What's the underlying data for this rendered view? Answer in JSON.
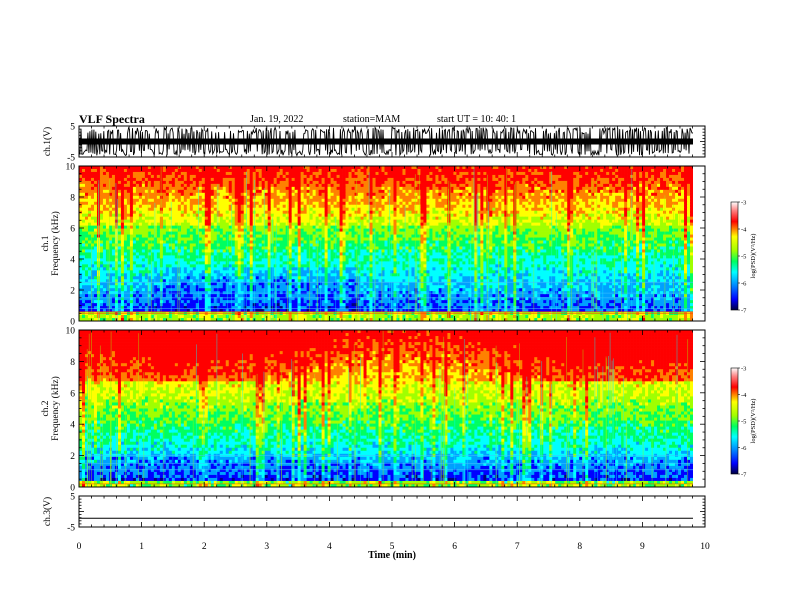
{
  "header": {
    "title": "VLF Spectra",
    "date": "Jan. 19, 2022",
    "station": "station=MAM",
    "start": "start UT =  10: 40: 1"
  },
  "colors": {
    "scale": [
      "#000080",
      "#0000ff",
      "#00a0ff",
      "#00ffff",
      "#00ff60",
      "#a0ff00",
      "#ffff00",
      "#ff8000",
      "#ff0000"
    ],
    "axis": "#000000",
    "waveform": "#000000"
  },
  "chart_data": [
    {
      "type": "line",
      "name": "ch1-waveform",
      "ylabel": "ch.1(V)",
      "ylim": [
        -5,
        5
      ],
      "yticks": [
        "5",
        "-5"
      ],
      "xlim": [
        0,
        10
      ],
      "description_units": "V",
      "amplitude": 4.5
    },
    {
      "type": "heatmap",
      "name": "ch1-spectrogram",
      "ylabel_top": "ch.1",
      "ylabel": "Frequency (kHz)",
      "ylim": [
        0,
        10
      ],
      "yticks": [
        "0",
        "2",
        "4",
        "6",
        "8",
        "10"
      ],
      "xlim": [
        0,
        10
      ],
      "colorbar": {
        "label": "log(PSD)(V²/Hz)",
        "range": [
          -7,
          -3
        ],
        "ticks": [
          "-3",
          "-4",
          "-5",
          "-6",
          "-7"
        ]
      }
    },
    {
      "type": "heatmap",
      "name": "ch2-spectrogram",
      "ylabel_top": "ch.2",
      "ylabel": "Frequency (kHz)",
      "ylim": [
        0,
        10
      ],
      "yticks": [
        "0",
        "2",
        "4",
        "6",
        "8",
        "10"
      ],
      "xlim": [
        0,
        10
      ],
      "colorbar": {
        "label": "log(PSD)(V²/Hz)",
        "range": [
          -7,
          -3
        ],
        "ticks": [
          "-3",
          "-4",
          "-5",
          "-6",
          "-7"
        ]
      }
    },
    {
      "type": "line",
      "name": "ch3-waveform",
      "ylabel": "ch.3(V)",
      "ylim": [
        -5,
        5
      ],
      "yticks": [
        "5",
        "-5"
      ],
      "xlim": [
        0,
        10
      ],
      "value": -2.2
    }
  ],
  "xaxis": {
    "label": "Time (min)",
    "ticks": [
      "0",
      "1",
      "2",
      "3",
      "4",
      "5",
      "6",
      "7",
      "8",
      "9",
      "10"
    ]
  }
}
